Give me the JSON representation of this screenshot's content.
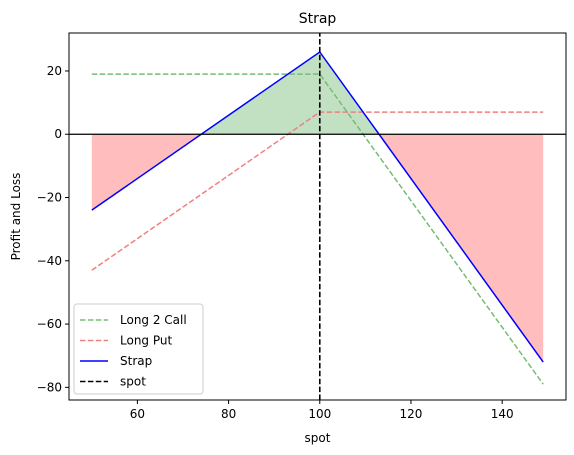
{
  "chart_data": {
    "type": "line",
    "title": "Strap",
    "xlabel": "spot",
    "ylabel": "Profit and Loss",
    "xlim": [
      45,
      154
    ],
    "ylim": [
      -84,
      32
    ],
    "xticks": [
      60,
      80,
      100,
      120,
      140
    ],
    "yticks": [
      -80,
      -60,
      -40,
      -20,
      0,
      20
    ],
    "xtick_labels": [
      "60",
      "80",
      "100",
      "120",
      "140"
    ],
    "ytick_labels": [
      "−80",
      "−60",
      "−40",
      "−20",
      "0",
      "20"
    ],
    "spot": 100,
    "grid": false,
    "legend_position": "lower-left",
    "series": [
      {
        "name": "Long 2 Call",
        "color": "#77bb77",
        "style": "dashed",
        "x": [
          50,
          100,
          149
        ],
        "y": [
          19,
          19,
          -79
        ]
      },
      {
        "name": "Long Put",
        "color": "#f08080",
        "style": "dashed",
        "x": [
          50,
          100,
          149
        ],
        "y": [
          -43,
          7,
          7
        ]
      },
      {
        "name": "Strap",
        "color": "#0000ff",
        "style": "solid",
        "x": [
          50,
          100,
          149
        ],
        "y": [
          -24,
          26,
          -72
        ]
      },
      {
        "name": "spot",
        "color": "#000000",
        "style": "dashed",
        "x": [
          100,
          100
        ],
        "y": [
          -84,
          32
        ]
      }
    ],
    "fill_colors": {
      "profit": "#c2e0c2",
      "loss": "#ffbdbd"
    }
  }
}
